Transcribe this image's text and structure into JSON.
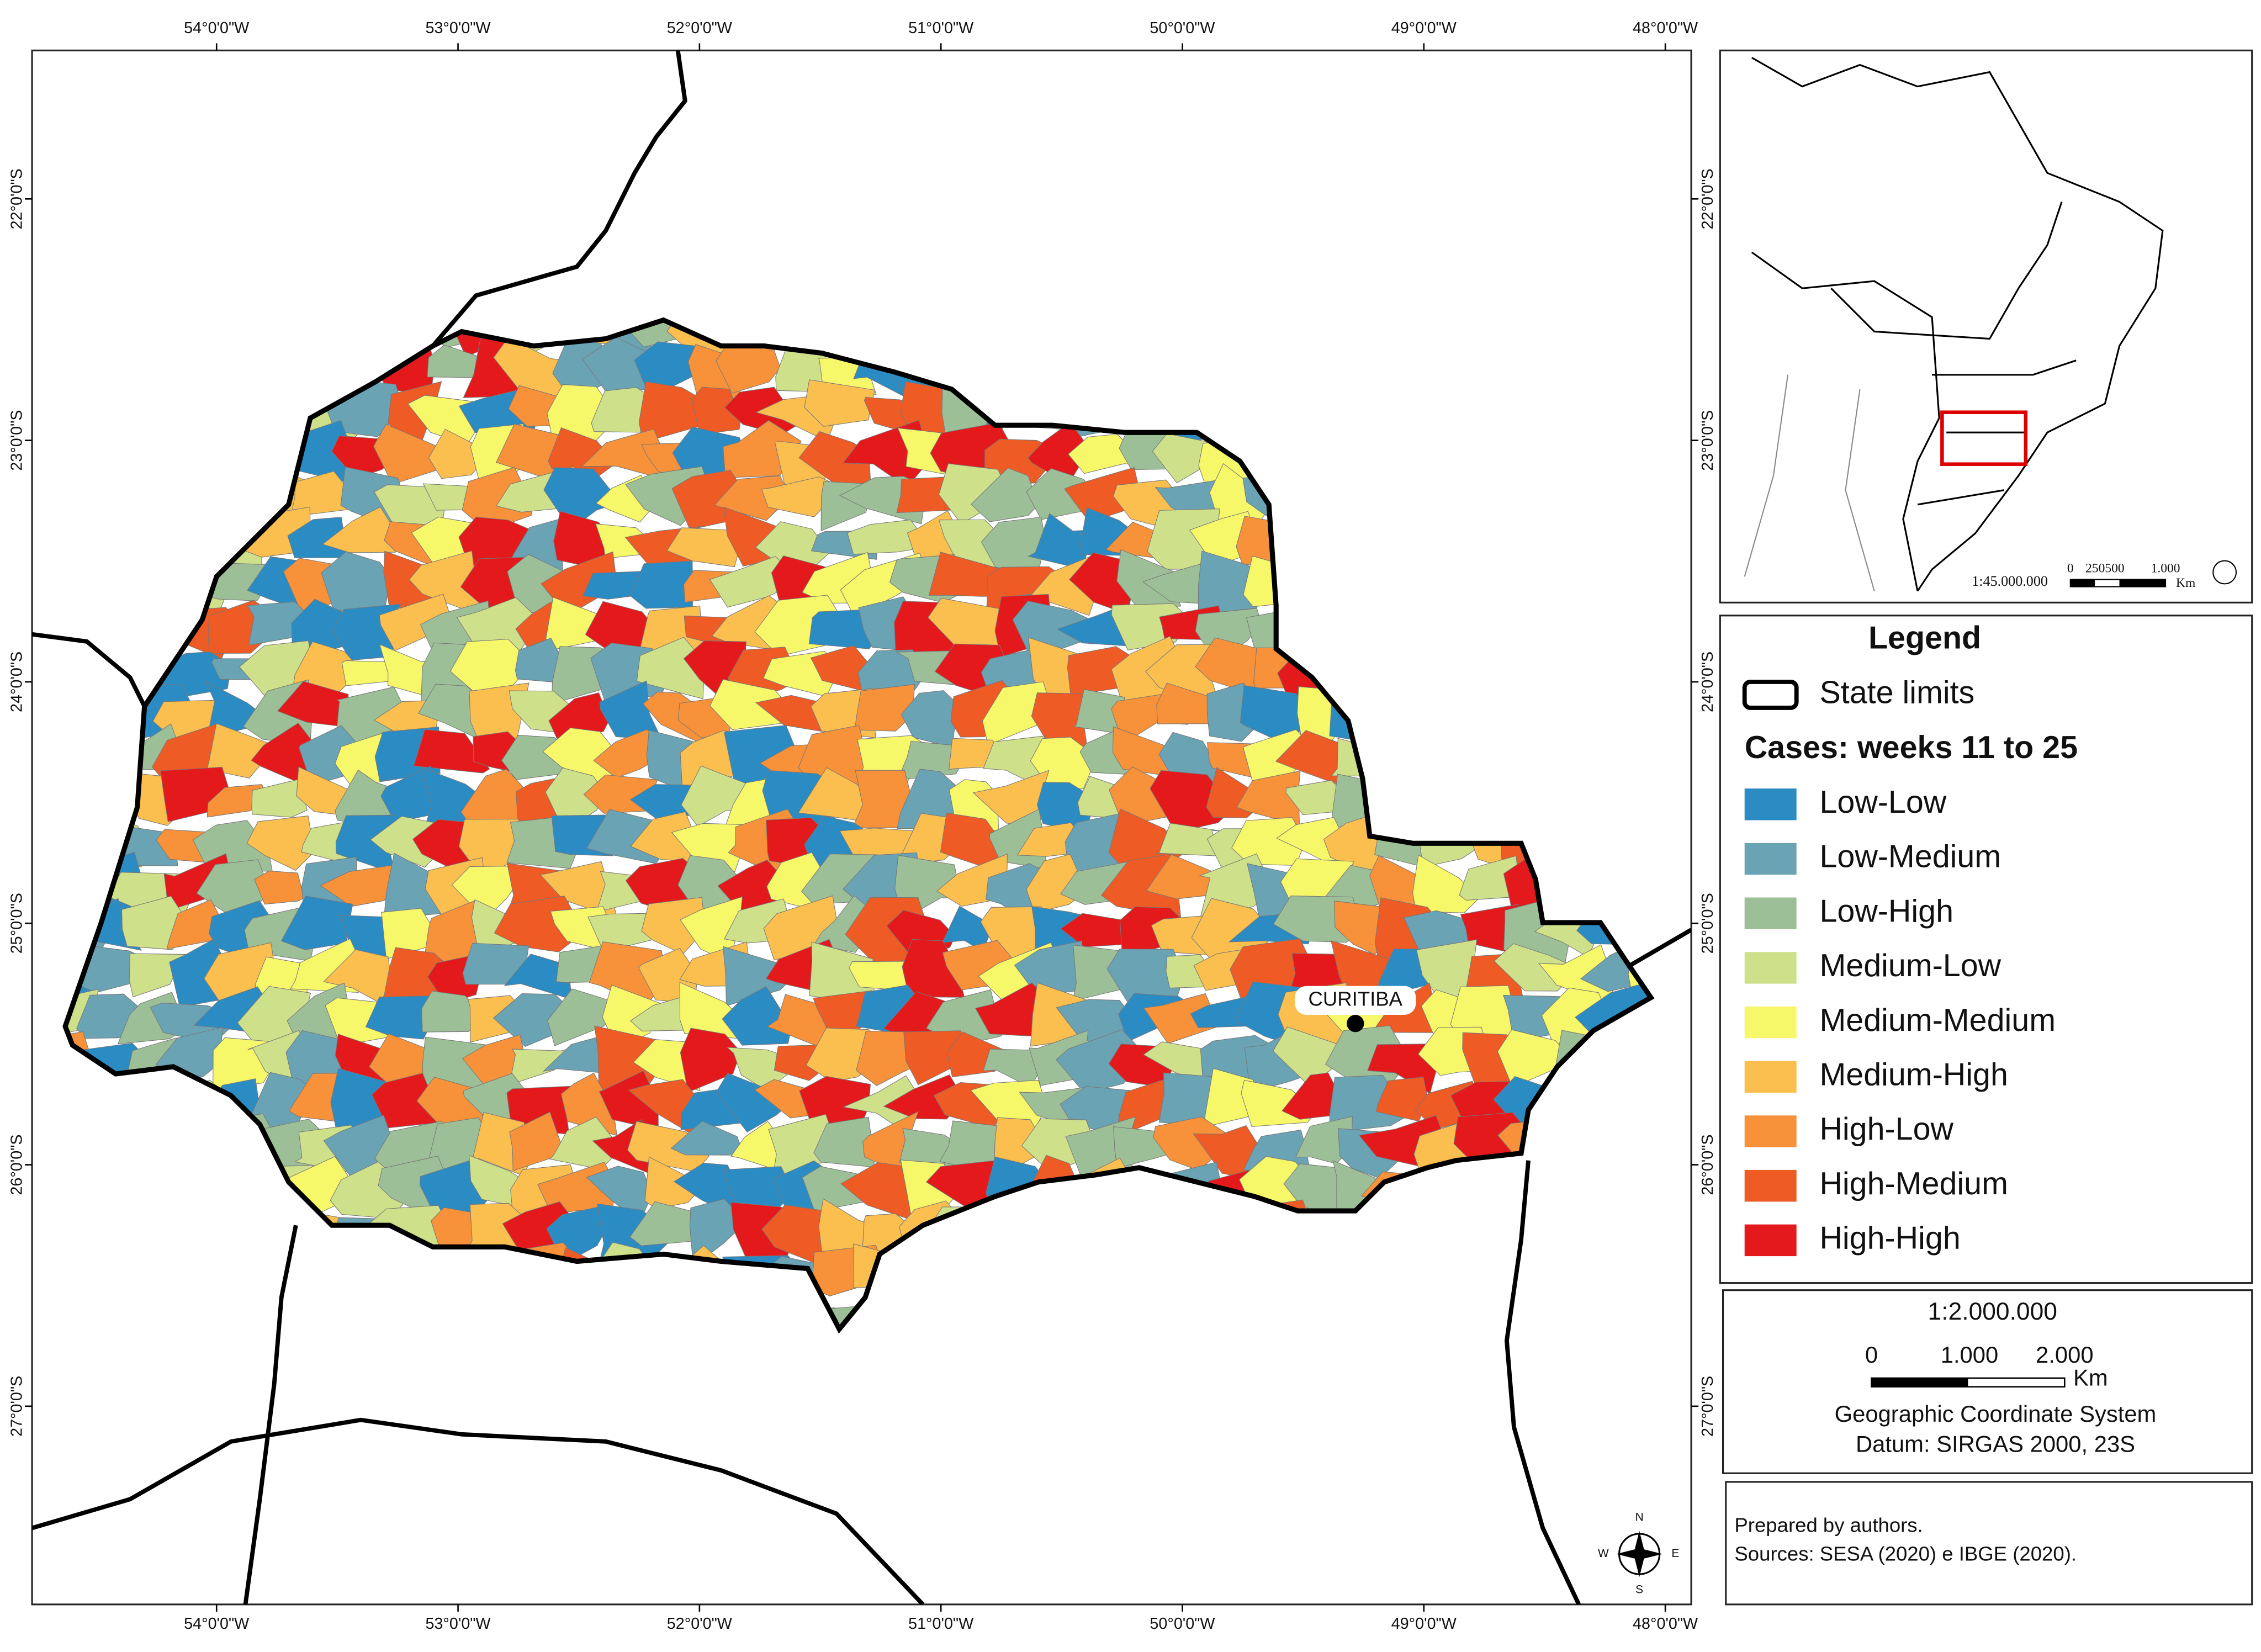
{
  "graticule": {
    "longitude_labels": [
      "54°0'0\"W",
      "53°0'0\"W",
      "52°0'0\"W",
      "51°0'0\"W",
      "50°0'0\"W",
      "49°0'0\"W",
      "48°0'0\"W"
    ],
    "latitude_labels": [
      "22°0'0\"S",
      "23°0'0\"S",
      "24°0'0\"S",
      "25°0'0\"S",
      "26°0'0\"S",
      "27°0'0\"S"
    ]
  },
  "map": {
    "city_label": "CURITIBA"
  },
  "inset": {
    "scale": "1:45.000.000",
    "scale_bar_labels": [
      "0",
      "250500",
      "1.000"
    ],
    "unit": "Km"
  },
  "legend": {
    "title": "Legend",
    "state_limits": "State limits",
    "cases_title": "Cases: weeks 11 to 25",
    "classes": [
      {
        "label": "Low-Low",
        "color": "#2b8cc4"
      },
      {
        "label": "Low-Medium",
        "color": "#6aa3b4"
      },
      {
        "label": "Low-High",
        "color": "#9dbf97"
      },
      {
        "label": "Medium-Low",
        "color": "#cfe08a"
      },
      {
        "label": "Medium-Medium",
        "color": "#f7f76a"
      },
      {
        "label": "Medium-High",
        "color": "#fbbf4f"
      },
      {
        "label": "High-Low",
        "color": "#f7913a"
      },
      {
        "label": "High-Medium",
        "color": "#ef5b25"
      },
      {
        "label": "High-High",
        "color": "#e3191c"
      }
    ]
  },
  "scale_box": {
    "ratio": "1:2.000.000",
    "bar_labels": [
      "0",
      "1.000",
      "2.000"
    ],
    "unit": "Km",
    "coordinate_system": "Geographic Coordinate System",
    "datum": "Datum: SIRGAS 2000, 23S"
  },
  "credits": [
    "Prepared by authors.",
    "Sources: SESA (2020) e IBGE (2020)."
  ],
  "compass": [
    "N",
    "E",
    "S",
    "W"
  ]
}
